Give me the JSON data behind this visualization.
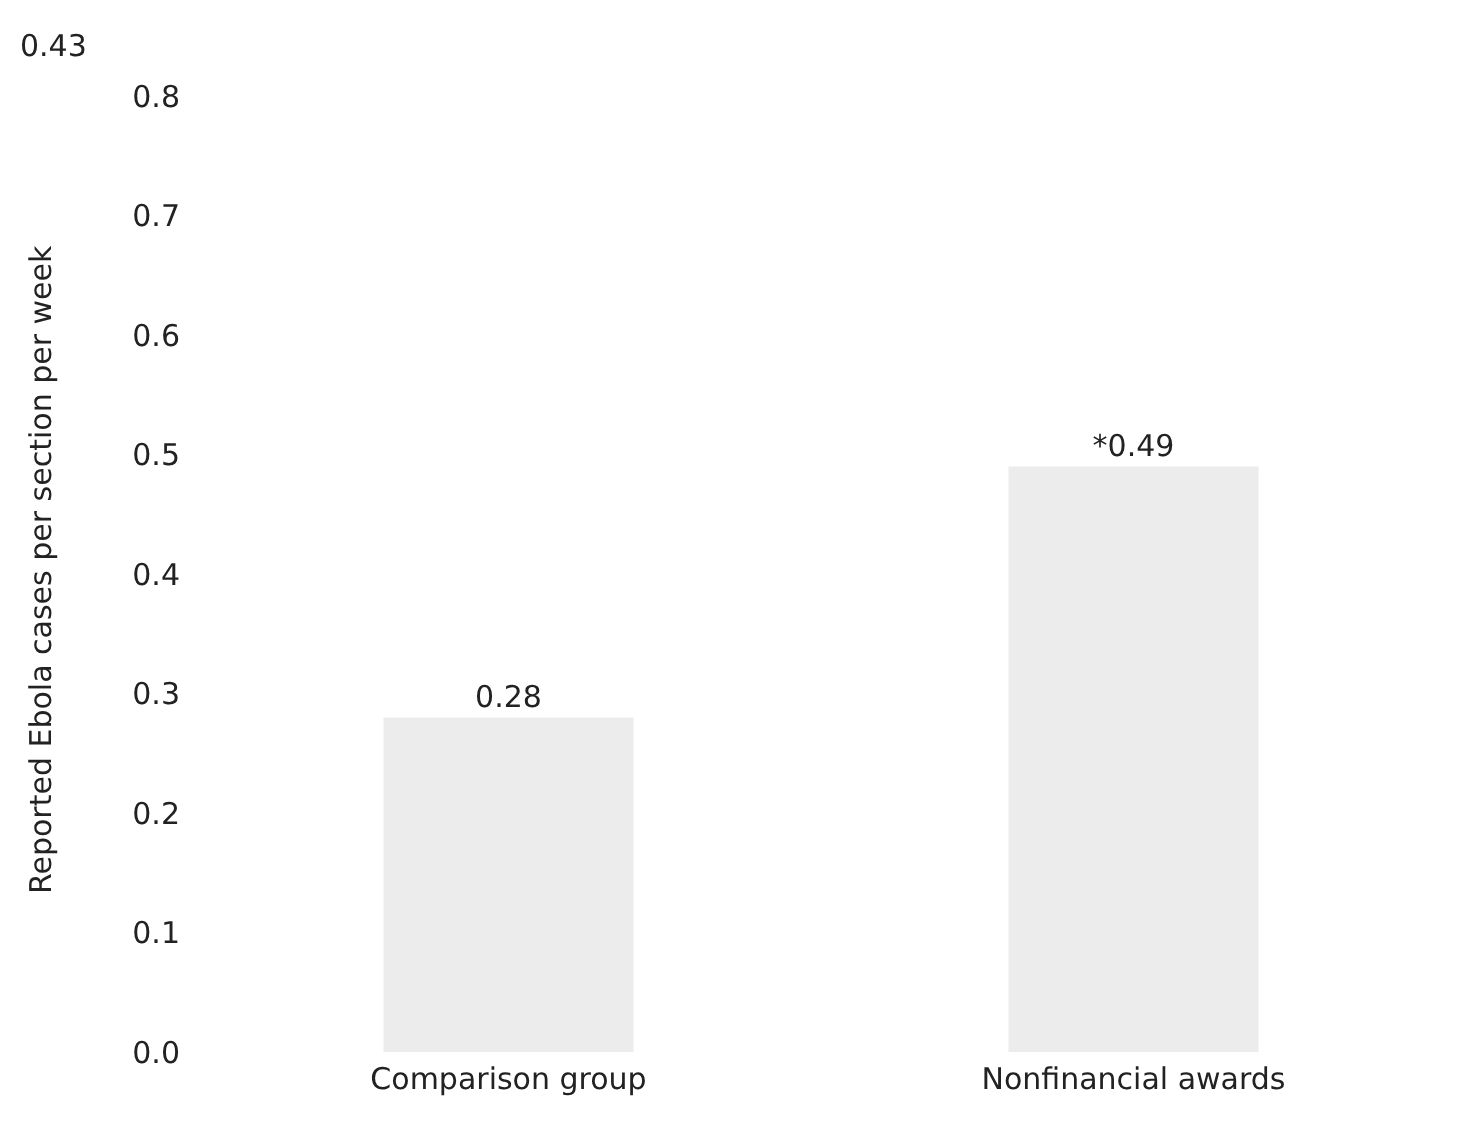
{
  "chart_data": {
    "type": "bar",
    "ylabel": "Reported Ebola cases per section per week",
    "categories": [
      "Comparison group",
      "Nonfinancial awards"
    ],
    "values": [
      0.28,
      0.49
    ],
    "color": "#ececec",
    "value_labels": [
      "0.28",
      "*0.49"
    ],
    "ylim": [
      0,
      0.8
    ],
    "yticks": [
      {
        "value": 0,
        "label": "0.0"
      },
      0.1,
      0.2,
      0.3,
      0.4,
      0.5,
      0.6,
      0.7,
      0.8
    ],
    "annotations": [
      "0.43"
    ],
    "grid": false,
    "legend": false
  }
}
